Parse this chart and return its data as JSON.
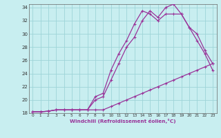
{
  "xlabel": "Windchill (Refroidissement éolien,°C)",
  "bg_color": "#c8eef0",
  "grid_color": "#9ed4d8",
  "line_color": "#993399",
  "xlim": [
    -0.5,
    23.5
  ],
  "ylim": [
    18,
    34.5
  ],
  "xticks": [
    0,
    1,
    2,
    3,
    4,
    5,
    6,
    7,
    8,
    9,
    10,
    11,
    12,
    13,
    14,
    15,
    16,
    17,
    18,
    19,
    20,
    21,
    22,
    23
  ],
  "yticks": [
    18,
    20,
    22,
    24,
    26,
    28,
    30,
    32,
    34
  ],
  "line1_x": [
    0,
    1,
    2,
    3,
    4,
    5,
    6,
    7,
    8,
    9,
    10,
    11,
    12,
    13,
    14,
    15,
    16,
    17,
    18,
    19,
    20,
    21,
    22,
    23
  ],
  "line1_y": [
    18.2,
    18.2,
    18.3,
    18.5,
    18.5,
    18.5,
    18.5,
    18.5,
    18.5,
    18.5,
    19.0,
    19.5,
    20.0,
    20.5,
    21.0,
    21.5,
    22.0,
    22.5,
    23.0,
    23.5,
    24.0,
    24.5,
    25.0,
    25.5
  ],
  "line2_x": [
    0,
    1,
    2,
    3,
    4,
    5,
    6,
    7,
    8,
    9,
    10,
    11,
    12,
    13,
    14,
    15,
    16,
    17,
    18,
    19,
    20,
    21,
    22,
    23
  ],
  "line2_y": [
    18.2,
    18.2,
    18.3,
    18.5,
    18.5,
    18.5,
    18.5,
    18.5,
    20.0,
    20.5,
    23.0,
    25.5,
    28.0,
    29.5,
    32.0,
    33.5,
    32.5,
    34.0,
    34.5,
    33.0,
    31.0,
    30.0,
    27.5,
    25.5
  ],
  "line3_x": [
    0,
    1,
    2,
    3,
    4,
    5,
    6,
    7,
    8,
    9,
    10,
    11,
    12,
    13,
    14,
    15,
    16,
    17,
    18,
    19,
    20,
    21,
    22,
    23
  ],
  "line3_y": [
    18.2,
    18.2,
    18.3,
    18.5,
    18.5,
    18.5,
    18.5,
    18.5,
    20.5,
    21.0,
    24.5,
    27.0,
    29.0,
    31.5,
    33.5,
    33.0,
    32.0,
    33.0,
    33.0,
    33.0,
    31.0,
    29.0,
    27.0,
    24.5
  ]
}
